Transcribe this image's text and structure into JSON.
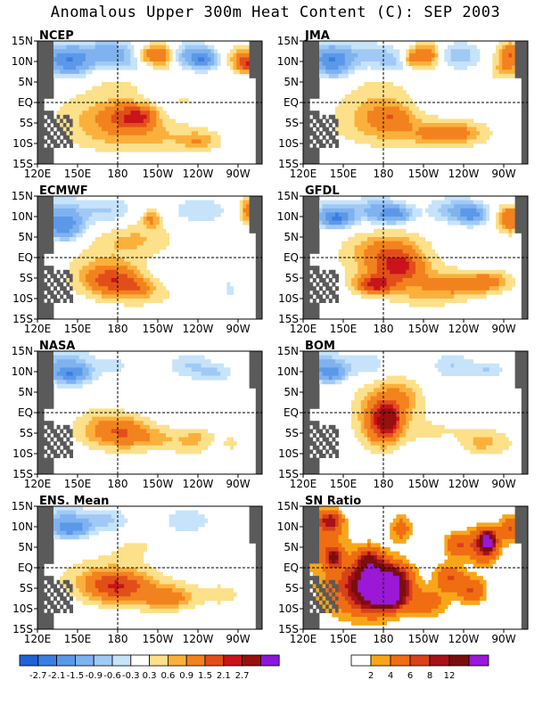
{
  "title": "Anomalous Upper 300m Heat Content (C): SEP 2003",
  "chart_data": [
    {
      "type": "heatmap",
      "title": "NCEP",
      "lat_ticks": [
        "15N",
        "10N",
        "5N",
        "EQ",
        "5S",
        "10S",
        "15S"
      ],
      "lon_ticks": [
        "120E",
        "150E",
        "180",
        "150W",
        "120W",
        "90W"
      ],
      "blobs": [
        [
          7,
          12,
          11,
          3,
          -0.9
        ],
        [
          10,
          10,
          6,
          3,
          -1.5
        ],
        [
          22,
          13,
          7,
          3,
          -0.9
        ],
        [
          28,
          10,
          7,
          3,
          -0.6
        ],
        [
          47,
          12,
          8,
          3,
          -0.9
        ],
        [
          51,
          11,
          4,
          2,
          -1.5
        ],
        [
          18,
          -3,
          14,
          6,
          0.6
        ],
        [
          28,
          -3,
          7,
          3,
          1.5
        ],
        [
          32,
          -3,
          4,
          2,
          0.9
        ],
        [
          35,
          -8,
          20,
          4,
          0.6
        ],
        [
          50,
          -9,
          5,
          2,
          0.6
        ],
        [
          38,
          12,
          4,
          3,
          1.5
        ],
        [
          33,
          12,
          3,
          2,
          0.9
        ],
        [
          45,
          1,
          4,
          2,
          0.3
        ],
        [
          62,
          12,
          5,
          3,
          0.6
        ],
        [
          66,
          10,
          4,
          2,
          2.1
        ],
        [
          26,
          6,
          12,
          4,
          0.3
        ]
      ]
    },
    {
      "type": "heatmap",
      "title": "JMA",
      "lat_ticks": [
        "15N",
        "10N",
        "5N",
        "EQ",
        "5S",
        "10S",
        "15S"
      ],
      "lon_ticks": [
        "120E",
        "150E",
        "180",
        "150W",
        "120W",
        "90W"
      ],
      "blobs": [
        [
          7,
          12,
          10,
          3,
          -0.9
        ],
        [
          9,
          10,
          5,
          3,
          -1.5
        ],
        [
          22,
          12,
          7,
          3,
          -0.6
        ],
        [
          30,
          10,
          6,
          3,
          -0.6
        ],
        [
          47,
          12,
          7,
          3,
          -0.9
        ],
        [
          20,
          -3,
          12,
          6,
          0.6
        ],
        [
          27,
          -3,
          6,
          3,
          0.9
        ],
        [
          40,
          -7,
          18,
          4,
          0.6
        ],
        [
          45,
          -7,
          8,
          2,
          0.9
        ],
        [
          38,
          12,
          5,
          3,
          1.5
        ],
        [
          33,
          11,
          3,
          2,
          0.9
        ],
        [
          64,
          12,
          4,
          3,
          1.5
        ],
        [
          62,
          8,
          4,
          2,
          0.6
        ],
        [
          25,
          4,
          10,
          4,
          0.3
        ]
      ]
    },
    {
      "type": "heatmap",
      "title": "ECMWF",
      "lat_ticks": [
        "15N",
        "10N",
        "5N",
        "EQ",
        "5S",
        "10S",
        "15S"
      ],
      "lon_ticks": [
        "120E",
        "150E",
        "180",
        "150W",
        "120W",
        "90W"
      ],
      "blobs": [
        [
          6,
          11,
          9,
          4,
          -0.9
        ],
        [
          8,
          8,
          5,
          3,
          -1.5
        ],
        [
          22,
          12,
          7,
          3,
          -0.6
        ],
        [
          50,
          12,
          8,
          3,
          -0.6
        ],
        [
          20,
          -3,
          12,
          6,
          0.6
        ],
        [
          23,
          -5,
          7,
          3,
          1.5
        ],
        [
          30,
          -7,
          5,
          2,
          0.9
        ],
        [
          30,
          5,
          12,
          4,
          0.6
        ],
        [
          36,
          -9,
          14,
          4,
          0.3
        ],
        [
          55,
          -4,
          4,
          5,
          -0.3
        ],
        [
          60,
          -8,
          3,
          4,
          -0.3
        ],
        [
          66,
          12,
          3,
          3,
          1.5
        ],
        [
          35,
          10,
          3,
          2,
          0.9
        ]
      ]
    },
    {
      "type": "heatmap",
      "title": "GFDL",
      "lat_ticks": [
        "15N",
        "10N",
        "5N",
        "EQ",
        "5S",
        "10S",
        "15S"
      ],
      "lon_ticks": [
        "120E",
        "150E",
        "180",
        "150W",
        "120W",
        "90W"
      ],
      "blobs": [
        [
          8,
          11,
          7,
          3,
          -0.9
        ],
        [
          10,
          10,
          4,
          2,
          -1.5
        ],
        [
          22,
          12,
          8,
          3,
          -0.9
        ],
        [
          28,
          11,
          5,
          2,
          -1.5
        ],
        [
          47,
          12,
          8,
          3,
          -0.9
        ],
        [
          52,
          11,
          4,
          2,
          -1.5
        ],
        [
          25,
          2,
          15,
          6,
          0.6
        ],
        [
          26,
          1,
          8,
          4,
          0.9
        ],
        [
          22,
          -6,
          5,
          2,
          2.1
        ],
        [
          30,
          -2,
          6,
          3,
          1.5
        ],
        [
          40,
          -6,
          22,
          4,
          0.6
        ],
        [
          50,
          -6,
          8,
          2,
          0.9
        ],
        [
          58,
          -5,
          5,
          2,
          0.6
        ],
        [
          64,
          10,
          4,
          3,
          1.5
        ],
        [
          38,
          -9,
          10,
          3,
          0.3
        ]
      ]
    },
    {
      "type": "heatmap",
      "title": "NASA",
      "lat_ticks": [
        "15N",
        "10N",
        "5N",
        "EQ",
        "5S",
        "10S",
        "15S"
      ],
      "lon_ticks": [
        "120E",
        "150E",
        "180",
        "150W",
        "120W",
        "90W"
      ],
      "blobs": [
        [
          8,
          12,
          9,
          4,
          -0.9
        ],
        [
          10,
          10,
          5,
          2,
          -1.5
        ],
        [
          25,
          12,
          6,
          3,
          -0.3
        ],
        [
          47,
          12,
          7,
          3,
          -0.6
        ],
        [
          55,
          10,
          5,
          2,
          -0.6
        ],
        [
          20,
          -3,
          10,
          5,
          0.6
        ],
        [
          26,
          -4,
          8,
          3,
          0.9
        ],
        [
          36,
          -6,
          14,
          3,
          0.6
        ],
        [
          35,
          8,
          4,
          6,
          0.3
        ],
        [
          50,
          -5,
          4,
          2,
          0.3
        ],
        [
          48,
          -8,
          5,
          3,
          0.3
        ],
        [
          60,
          -7,
          4,
          3,
          0.3
        ]
      ]
    },
    {
      "type": "heatmap",
      "title": "BOM",
      "lat_ticks": [
        "15N",
        "10N",
        "5N",
        "EQ",
        "5S",
        "10S",
        "15S"
      ],
      "lon_ticks": [
        "120E",
        "150E",
        "180",
        "150W",
        "120W",
        "90W"
      ],
      "blobs": [
        [
          6,
          12,
          8,
          3,
          -0.9
        ],
        [
          8,
          10,
          4,
          2,
          -1.5
        ],
        [
          20,
          12,
          6,
          3,
          -0.6
        ],
        [
          46,
          12,
          6,
          3,
          -0.6
        ],
        [
          57,
          11,
          5,
          2,
          -0.6
        ],
        [
          24,
          2,
          10,
          8,
          0.6
        ],
        [
          24,
          -2,
          5,
          5,
          1.5
        ],
        [
          26,
          -1,
          3,
          3,
          2.1
        ],
        [
          30,
          4,
          6,
          4,
          0.6
        ],
        [
          42,
          -4,
          16,
          4,
          0.3
        ],
        [
          55,
          -7,
          5,
          3,
          0.6
        ],
        [
          62,
          -7,
          4,
          3,
          0.3
        ]
      ]
    },
    {
      "type": "heatmap",
      "title": "ENS. Mean",
      "lat_ticks": [
        "15N",
        "10N",
        "5N",
        "EQ",
        "5S",
        "10S",
        "15S"
      ],
      "lon_ticks": [
        "120E",
        "150E",
        "180",
        "150W",
        "120W",
        "90W"
      ],
      "blobs": [
        [
          8,
          12,
          9,
          3,
          -0.9
        ],
        [
          10,
          10,
          5,
          2,
          -1.5
        ],
        [
          22,
          12,
          6,
          3,
          -0.6
        ],
        [
          46,
          12,
          7,
          3,
          -0.6
        ],
        [
          20,
          -2,
          14,
          5,
          0.6
        ],
        [
          24,
          -4,
          8,
          3,
          1.5
        ],
        [
          36,
          -6,
          16,
          4,
          0.6
        ],
        [
          40,
          -7,
          6,
          2,
          0.9
        ],
        [
          30,
          6,
          10,
          4,
          0.3
        ],
        [
          58,
          -6,
          6,
          3,
          0.3
        ]
      ]
    },
    {
      "type": "heatmap",
      "title": "SN Ratio",
      "lat_ticks": [
        "15N",
        "10N",
        "5N",
        "EQ",
        "5S",
        "10S",
        "15S"
      ],
      "lon_ticks": [
        "120E",
        "150E",
        "180",
        "150W",
        "120W",
        "90W"
      ],
      "blobs": [
        [
          6,
          8,
          6,
          6,
          3
        ],
        [
          8,
          12,
          3,
          2,
          6
        ],
        [
          9,
          3,
          2,
          2,
          8
        ],
        [
          18,
          -4,
          12,
          7,
          4
        ],
        [
          22,
          -4,
          8,
          5,
          6
        ],
        [
          22,
          -4,
          5,
          4,
          12
        ],
        [
          28,
          -3,
          4,
          3,
          8
        ],
        [
          26,
          -7,
          4,
          2,
          12
        ],
        [
          20,
          2,
          3,
          3,
          6
        ],
        [
          38,
          -8,
          6,
          3,
          3
        ],
        [
          45,
          -2,
          4,
          3,
          4
        ],
        [
          48,
          6,
          4,
          3,
          4
        ],
        [
          56,
          6,
          4,
          4,
          6
        ],
        [
          57,
          7,
          2,
          2,
          12
        ],
        [
          52,
          -5,
          4,
          3,
          4
        ],
        [
          64,
          10,
          3,
          3,
          4
        ],
        [
          30,
          10,
          3,
          3,
          3
        ]
      ]
    }
  ],
  "legend_anomaly": {
    "labels": [
      "-2.7",
      "-2.1",
      "-1.5",
      "-0.9",
      "-0.6",
      "-0.3",
      "0.3",
      "0.6",
      "0.9",
      "1.5",
      "2.1",
      "2.7"
    ],
    "colors": [
      "#1f62d6",
      "#3a7fe0",
      "#5c98e8",
      "#7fb2ef",
      "#a0caf5",
      "#c6e3fa",
      "#ffffff",
      "#fce08a",
      "#fbb03c",
      "#f2821e",
      "#e24e1a",
      "#c8141a",
      "#990e0e",
      "#8a18d6"
    ]
  },
  "legend_sn": {
    "labels": [
      "2",
      "4",
      "6",
      "8",
      "12"
    ],
    "colors": [
      "#ffffff",
      "#f7a61a",
      "#f06d12",
      "#d7421b",
      "#a8101a",
      "#7a0e0e",
      "#9a18d6"
    ]
  }
}
